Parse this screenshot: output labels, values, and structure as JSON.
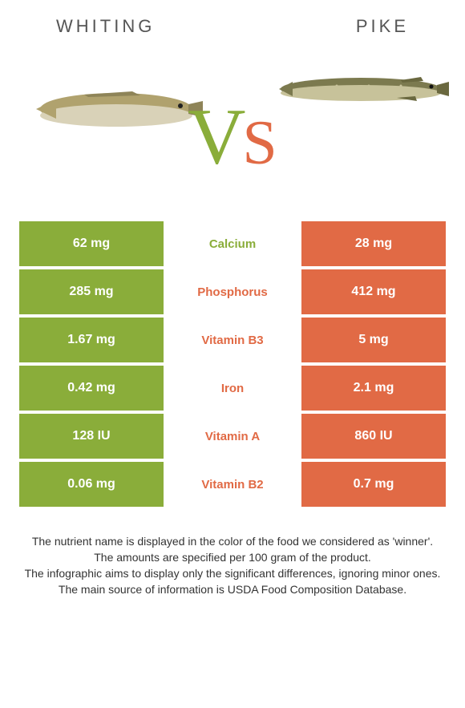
{
  "left_name": "WHITING",
  "right_name": "PIKE",
  "vs_v": "V",
  "vs_s": "S",
  "colors": {
    "left": "#8aad3a",
    "right": "#e16a45",
    "vs_v": "#8aad3a",
    "vs_s": "#e16a45"
  },
  "rows": [
    {
      "nutrient": "Calcium",
      "left": "62 mg",
      "right": "28 mg",
      "winner": "left"
    },
    {
      "nutrient": "Phosphorus",
      "left": "285 mg",
      "right": "412 mg",
      "winner": "right"
    },
    {
      "nutrient": "Vitamin B3",
      "left": "1.67 mg",
      "right": "5 mg",
      "winner": "right"
    },
    {
      "nutrient": "Iron",
      "left": "0.42 mg",
      "right": "2.1 mg",
      "winner": "right"
    },
    {
      "nutrient": "Vitamin A",
      "left": "128 IU",
      "right": "860 IU",
      "winner": "right"
    },
    {
      "nutrient": "Vitamin B2",
      "left": "0.06 mg",
      "right": "0.7 mg",
      "winner": "right"
    }
  ],
  "footer": [
    "The nutrient name is displayed in the color of the food we considered as 'winner'.",
    "The amounts are specified per 100 gram of the product.",
    "The infographic aims to display only the significant differences, ignoring minor ones.",
    "The main source of information is USDA Food Composition Database."
  ]
}
